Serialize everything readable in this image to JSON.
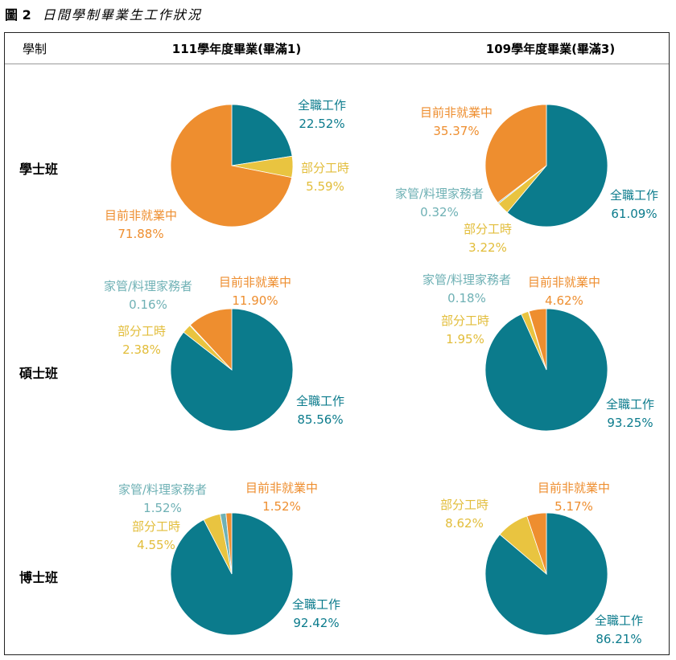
{
  "figure": {
    "number": "圖 2",
    "title": "日間學制畢業生工作狀況"
  },
  "header": {
    "system_label": "學制",
    "columns": [
      "111學年度畢業(畢滿1)",
      "109學年度畢業(畢滿3)"
    ]
  },
  "rows": [
    "學士班",
    "碩士班",
    "博士班"
  ],
  "colors": {
    "全職工作": "#0b7b8c",
    "部分工時": "#e9c440",
    "家管/料理家務者": "#6fb1b5",
    "目前非就業中": "#ee8e2f"
  },
  "chart_data": [
    {
      "type": "pie",
      "title": "學士班 111學年度畢業(畢滿1)",
      "slices": [
        {
          "label": "全職工作",
          "value": 22.52,
          "display": "22.52%"
        },
        {
          "label": "部分工時",
          "value": 5.59,
          "display": "5.59%"
        },
        {
          "label": "目前非就業中",
          "value": 71.88,
          "display": "71.88%"
        }
      ]
    },
    {
      "type": "pie",
      "title": "學士班 109學年度畢業(畢滿3)",
      "slices": [
        {
          "label": "全職工作",
          "value": 61.09,
          "display": "61.09%"
        },
        {
          "label": "部分工時",
          "value": 3.22,
          "display": "3.22%"
        },
        {
          "label": "家管/料理家務者",
          "value": 0.32,
          "display": "0.32%"
        },
        {
          "label": "目前非就業中",
          "value": 35.37,
          "display": "35.37%"
        }
      ]
    },
    {
      "type": "pie",
      "title": "碩士班 111學年度畢業(畢滿1)",
      "slices": [
        {
          "label": "全職工作",
          "value": 85.56,
          "display": "85.56%"
        },
        {
          "label": "部分工時",
          "value": 2.38,
          "display": "2.38%"
        },
        {
          "label": "家管/料理家務者",
          "value": 0.16,
          "display": "0.16%"
        },
        {
          "label": "目前非就業中",
          "value": 11.9,
          "display": "11.90%"
        }
      ]
    },
    {
      "type": "pie",
      "title": "碩士班 109學年度畢業(畢滿3)",
      "slices": [
        {
          "label": "全職工作",
          "value": 93.25,
          "display": "93.25%"
        },
        {
          "label": "部分工時",
          "value": 1.95,
          "display": "1.95%"
        },
        {
          "label": "家管/料理家務者",
          "value": 0.18,
          "display": "0.18%"
        },
        {
          "label": "目前非就業中",
          "value": 4.62,
          "display": "4.62%"
        }
      ]
    },
    {
      "type": "pie",
      "title": "博士班 111學年度畢業(畢滿1)",
      "slices": [
        {
          "label": "全職工作",
          "value": 92.42,
          "display": "92.42%"
        },
        {
          "label": "部分工時",
          "value": 4.55,
          "display": "4.55%"
        },
        {
          "label": "家管/料理家務者",
          "value": 1.52,
          "display": "1.52%"
        },
        {
          "label": "目前非就業中",
          "value": 1.52,
          "display": "1.52%"
        }
      ]
    },
    {
      "type": "pie",
      "title": "博士班 109學年度畢業(畢滿3)",
      "slices": [
        {
          "label": "全職工作",
          "value": 86.21,
          "display": "86.21%"
        },
        {
          "label": "部分工時",
          "value": 8.62,
          "display": "8.62%"
        },
        {
          "label": "目前非就業中",
          "value": 5.17,
          "display": "5.17%"
        }
      ]
    }
  ]
}
